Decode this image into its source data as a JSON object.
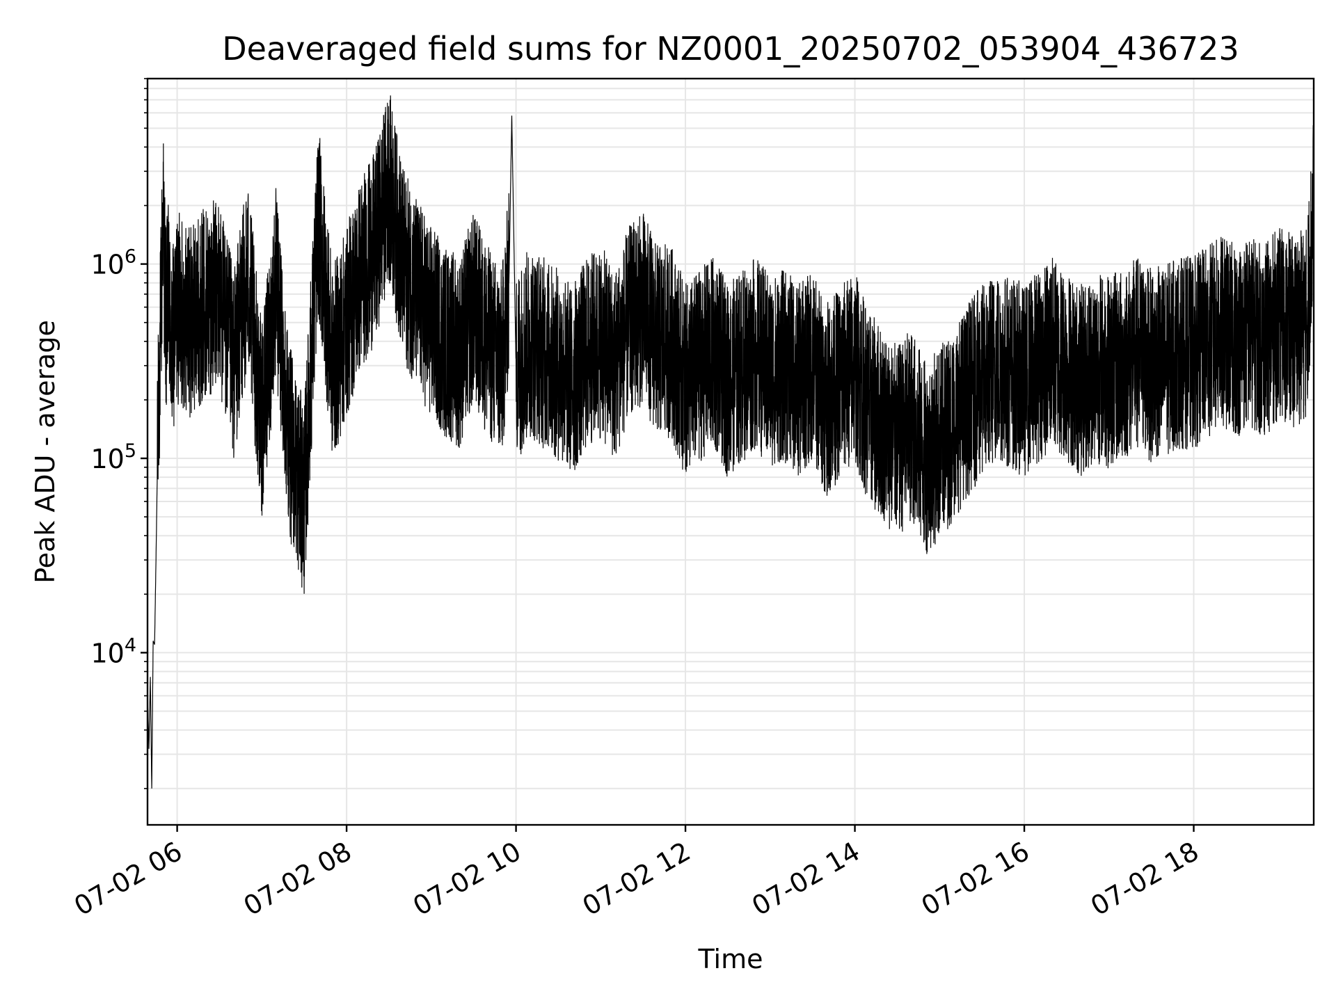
{
  "chart_data": {
    "type": "line",
    "title": "Deaveraged field sums for NZ0001_20250702_053904_436723",
    "xlabel": "Time",
    "ylabel": "Peak ADU - average",
    "yscale": "log",
    "ylim": [
      1300,
      9000000
    ],
    "xlim": [
      "07-02 05:39",
      "07-02 19:25"
    ],
    "grid": true,
    "line_color": "#000000",
    "x_ticks": [
      {
        "label": "07-02 06",
        "value": "07-02 06:00"
      },
      {
        "label": "07-02 08",
        "value": "07-02 08:00"
      },
      {
        "label": "07-02 10",
        "value": "07-02 10:00"
      },
      {
        "label": "07-02 12",
        "value": "07-02 12:00"
      },
      {
        "label": "07-02 14",
        "value": "07-02 14:00"
      },
      {
        "label": "07-02 16",
        "value": "07-02 16:00"
      },
      {
        "label": "07-02 18",
        "value": "07-02 18:00"
      }
    ],
    "y_ticks": [
      {
        "base": "10",
        "exp": "4",
        "value": 10000
      },
      {
        "base": "10",
        "exp": "5",
        "value": 100000
      },
      {
        "base": "10",
        "exp": "6",
        "value": 1000000
      }
    ],
    "series": [
      {
        "x": [
          "07-02 05:39",
          "07-02 05:40",
          "07-02 05:41",
          "07-02 05:42",
          "07-02 05:43",
          "07-02 05:44",
          "07-02 05:45",
          "07-02 05:46",
          "07-02 05:47",
          "07-02 05:48",
          "07-02 05:49",
          "07-02 05:50",
          "07-02 05:52",
          "07-02 05:54",
          "07-02 05:56",
          "07-02 06:00",
          "07-02 06:10",
          "07-02 06:20",
          "07-02 06:30",
          "07-02 06:40",
          "07-02 06:50",
          "07-02 07:00",
          "07-02 07:10",
          "07-02 07:20",
          "07-02 07:30",
          "07-02 07:40",
          "07-02 07:50",
          "07-02 08:00",
          "07-02 08:10",
          "07-02 08:20",
          "07-02 08:30",
          "07-02 08:40",
          "07-02 08:50",
          "07-02 09:00",
          "07-02 09:10",
          "07-02 09:20",
          "07-02 09:30",
          "07-02 09:40",
          "07-02 09:50",
          "07-02 09:55",
          "07-02 09:57",
          "07-02 10:00",
          "07-02 10:10",
          "07-02 10:20",
          "07-02 10:30",
          "07-02 10:40",
          "07-02 10:50",
          "07-02 11:00",
          "07-02 11:10",
          "07-02 11:20",
          "07-02 11:30",
          "07-02 11:40",
          "07-02 11:50",
          "07-02 12:00",
          "07-02 12:10",
          "07-02 12:20",
          "07-02 12:30",
          "07-02 12:40",
          "07-02 12:50",
          "07-02 13:00",
          "07-02 13:10",
          "07-02 13:20",
          "07-02 13:30",
          "07-02 13:40",
          "07-02 13:50",
          "07-02 14:00",
          "07-02 14:10",
          "07-02 14:20",
          "07-02 14:30",
          "07-02 14:40",
          "07-02 14:50",
          "07-02 15:00",
          "07-02 15:10",
          "07-02 15:20",
          "07-02 15:30",
          "07-02 15:40",
          "07-02 15:50",
          "07-02 16:00",
          "07-02 16:10",
          "07-02 16:20",
          "07-02 16:30",
          "07-02 16:40",
          "07-02 16:50",
          "07-02 17:00",
          "07-02 17:10",
          "07-02 17:20",
          "07-02 17:30",
          "07-02 17:40",
          "07-02 17:50",
          "07-02 18:00",
          "07-02 18:10",
          "07-02 18:20",
          "07-02 18:30",
          "07-02 18:40",
          "07-02 18:50",
          "07-02 19:00",
          "07-02 19:10",
          "07-02 19:20",
          "07-02 19:25"
        ],
        "y": [
          6000,
          3200,
          7500,
          2000,
          11500,
          11000,
          30000,
          90000,
          200000,
          400000,
          800000,
          1900000,
          500000,
          700000,
          350000,
          600000,
          500000,
          650000,
          700000,
          300000,
          900000,
          150000,
          800000,
          120000,
          60000,
          1700000,
          300000,
          500000,
          900000,
          1200000,
          2600000,
          1000000,
          700000,
          500000,
          400000,
          350000,
          600000,
          400000,
          300000,
          800000,
          5800000,
          300000,
          400000,
          350000,
          300000,
          250000,
          350000,
          400000,
          300000,
          500000,
          600000,
          400000,
          400000,
          250000,
          300000,
          350000,
          250000,
          300000,
          350000,
          280000,
          300000,
          250000,
          300000,
          200000,
          250000,
          300000,
          180000,
          150000,
          120000,
          150000,
          100000,
          120000,
          150000,
          200000,
          250000,
          300000,
          280000,
          250000,
          300000,
          350000,
          300000,
          250000,
          300000,
          280000,
          300000,
          350000,
          300000,
          320000,
          350000,
          350000,
          400000,
          450000,
          400000,
          450000,
          400000,
          500000,
          450000,
          500000,
          2000000
        ]
      }
    ]
  }
}
